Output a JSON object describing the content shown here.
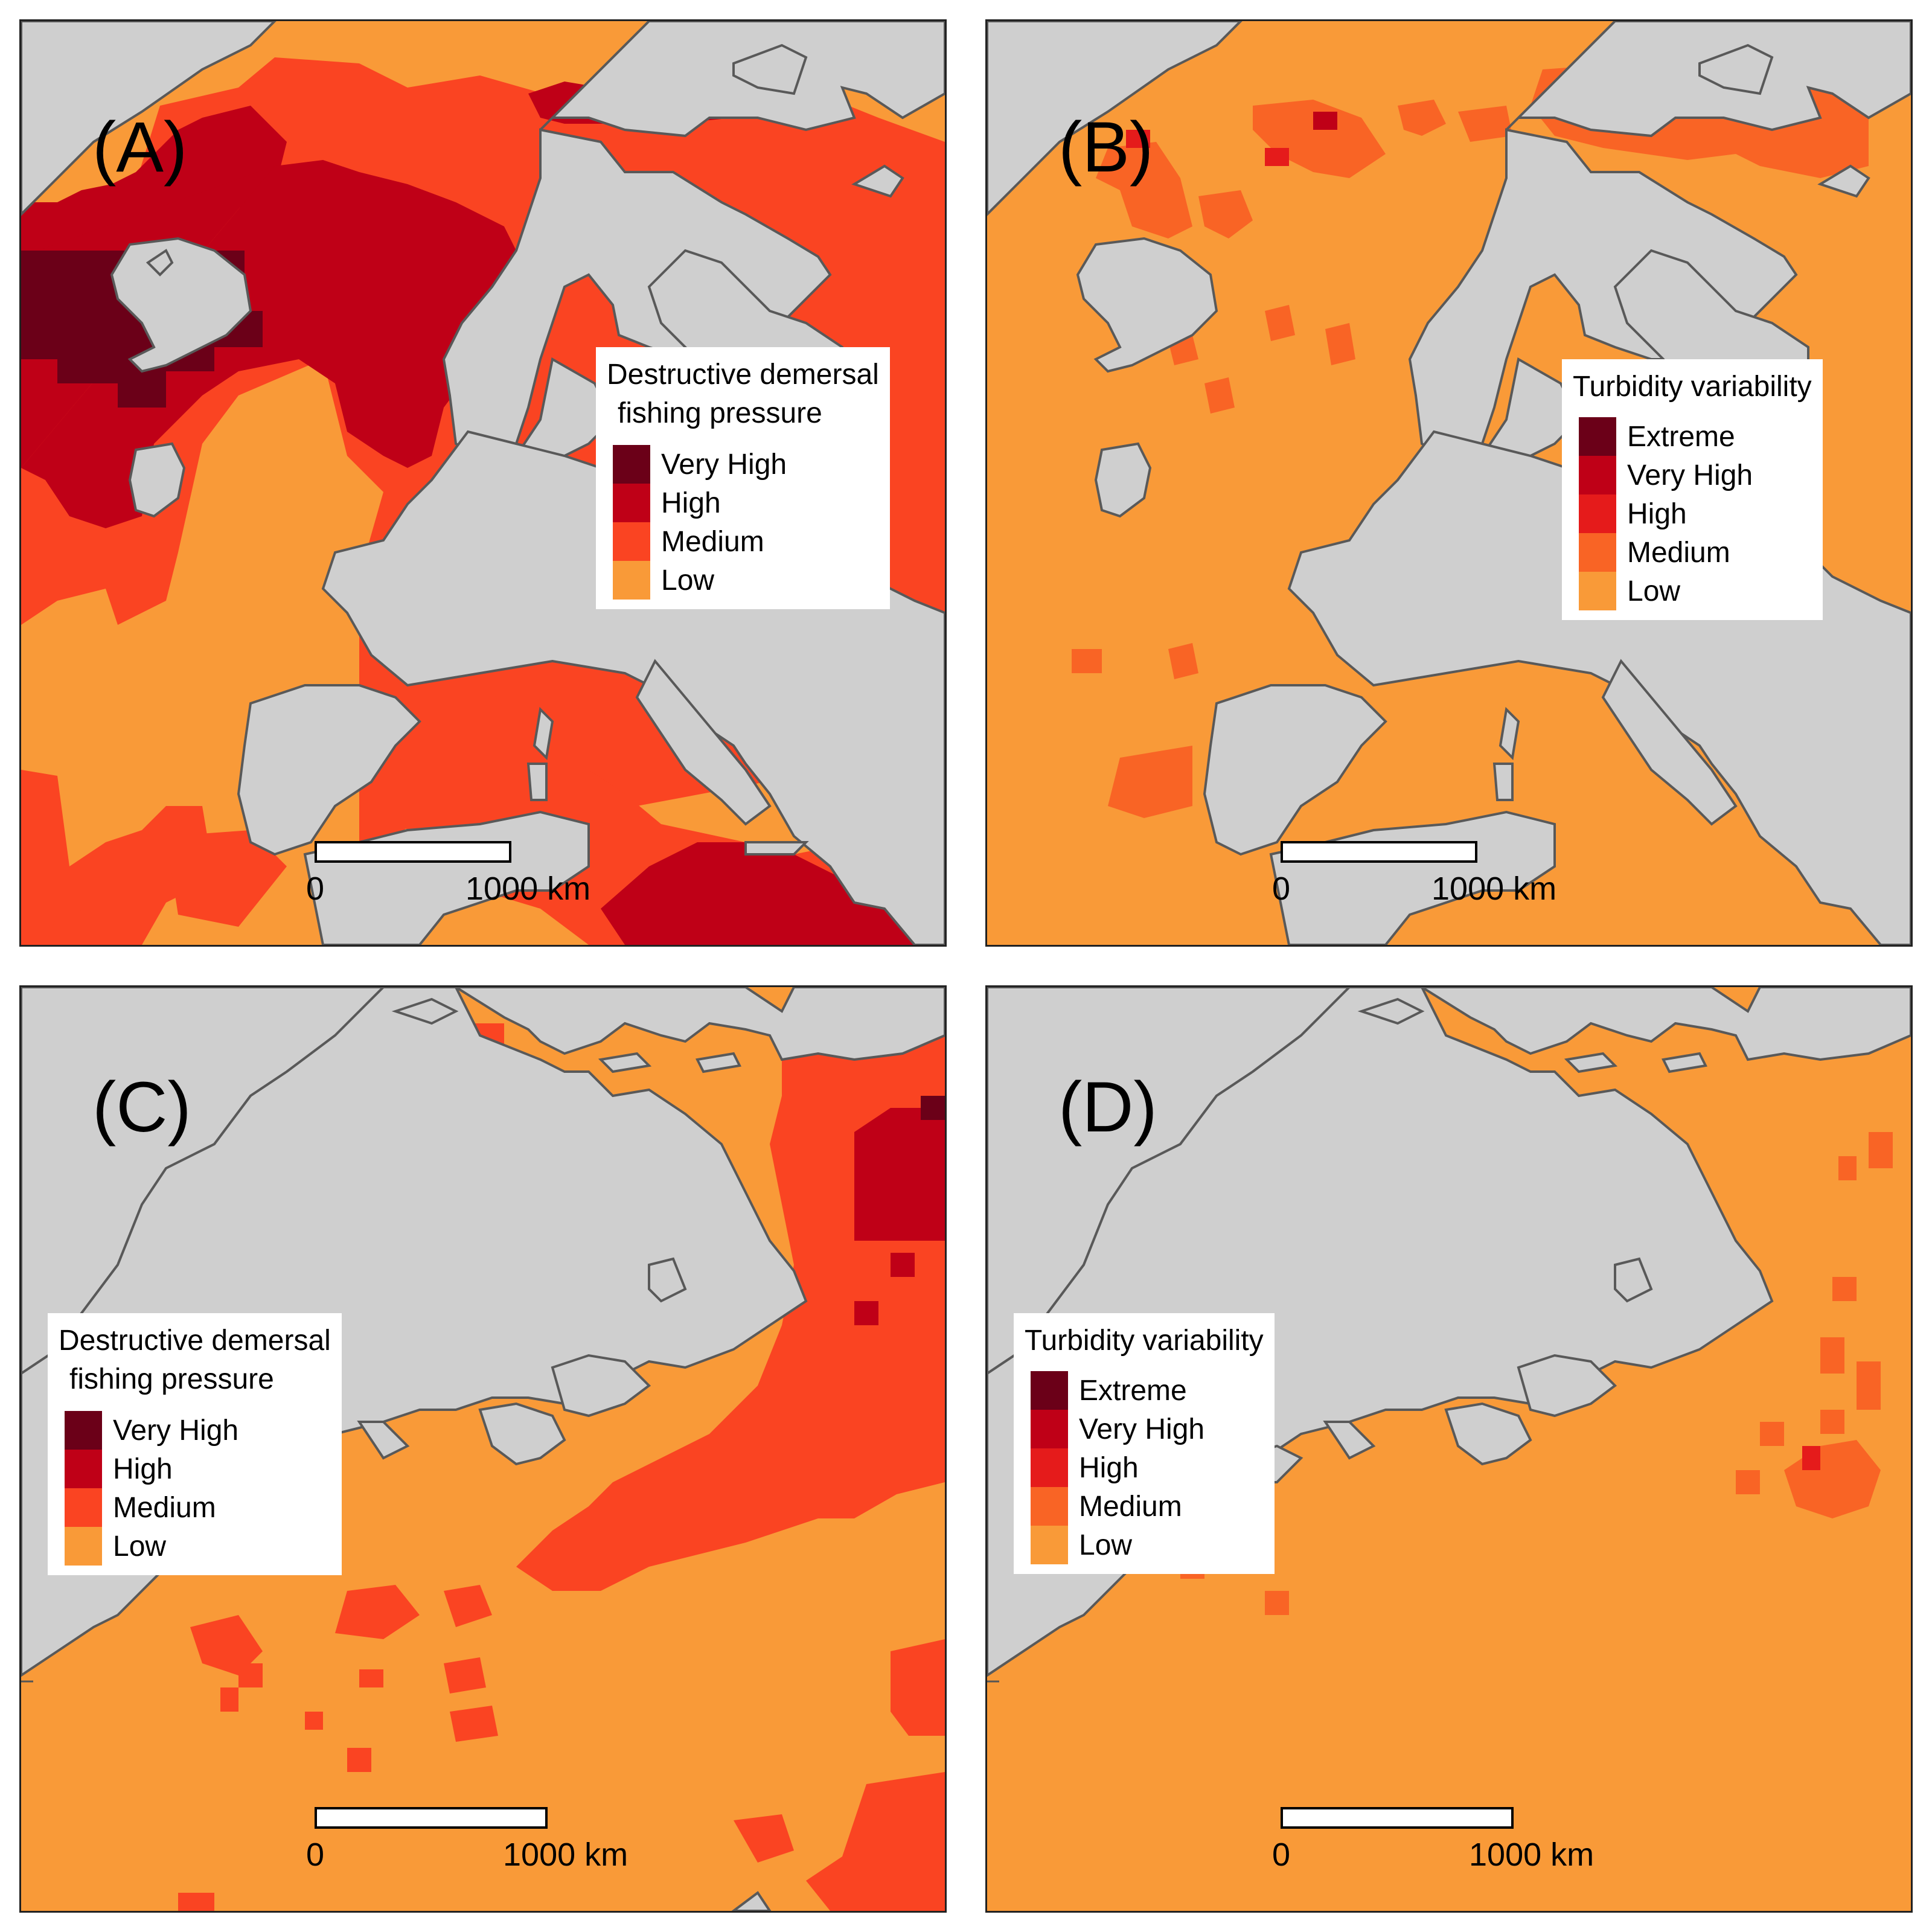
{
  "colors": {
    "land": "#cfcfcf",
    "coast": "#595959",
    "very_high": "#6b0018",
    "high": "#bf0017",
    "medium": "#fa4422",
    "low": "#f99a38",
    "turb_extreme": "#6b0018",
    "turb_very_high": "#bf0017",
    "turb_high": "#e51b1b",
    "turb_medium": "#f96425",
    "turb_low": "#f99a38"
  },
  "panels": [
    {
      "id": "a",
      "label": "(A)",
      "legend": {
        "title_lines": [
          "Destructive demersal",
          "fishing pressure"
        ],
        "items": [
          {
            "label": "Very High",
            "color": "#6b0018"
          },
          {
            "label": "High",
            "color": "#bf0017"
          },
          {
            "label": "Medium",
            "color": "#fa4422"
          },
          {
            "label": "Low",
            "color": "#f99a38"
          }
        ]
      },
      "scale": {
        "zero": "0",
        "end": "1000 km"
      }
    },
    {
      "id": "b",
      "label": "(B)",
      "legend": {
        "title_lines": [
          "Turbidity variability"
        ],
        "items": [
          {
            "label": "Extreme",
            "color": "#6b0018"
          },
          {
            "label": "Very High",
            "color": "#bf0017"
          },
          {
            "label": "High",
            "color": "#e51b1b"
          },
          {
            "label": "Medium",
            "color": "#f96425"
          },
          {
            "label": "Low",
            "color": "#f99a38"
          }
        ]
      },
      "scale": {
        "zero": "0",
        "end": "1000 km"
      }
    },
    {
      "id": "c",
      "label": "(C)",
      "legend": {
        "title_lines": [
          "Destructive demersal",
          "fishing pressure"
        ],
        "items": [
          {
            "label": "Very High",
            "color": "#6b0018"
          },
          {
            "label": "High",
            "color": "#bf0017"
          },
          {
            "label": "Medium",
            "color": "#fa4422"
          },
          {
            "label": "Low",
            "color": "#f99a38"
          }
        ]
      },
      "scale": {
        "zero": "0",
        "end": "1000 km"
      }
    },
    {
      "id": "d",
      "label": "(D)",
      "legend": {
        "title_lines": [
          "Turbidity variability"
        ],
        "items": [
          {
            "label": "Extreme",
            "color": "#6b0018"
          },
          {
            "label": "Very High",
            "color": "#bf0017"
          },
          {
            "label": "High",
            "color": "#e51b1b"
          },
          {
            "label": "Medium",
            "color": "#f96425"
          },
          {
            "label": "Low",
            "color": "#f99a38"
          }
        ]
      },
      "scale": {
        "zero": "0",
        "end": "1000 km"
      }
    }
  ]
}
